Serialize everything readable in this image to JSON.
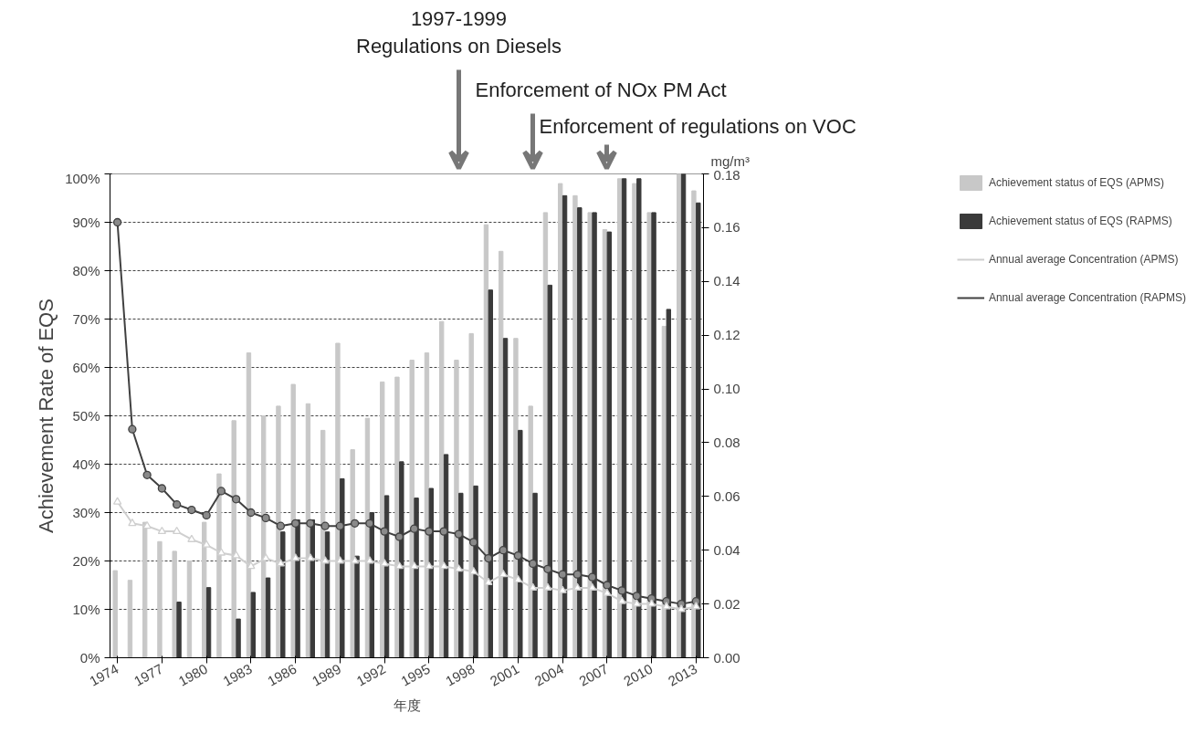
{
  "chart_data": {
    "type": "bar",
    "x": [
      1974,
      1975,
      1976,
      1977,
      1978,
      1979,
      1980,
      1981,
      1982,
      1983,
      1984,
      1985,
      1986,
      1987,
      1988,
      1989,
      1990,
      1991,
      1992,
      1993,
      1994,
      1995,
      1996,
      1997,
      1998,
      1999,
      2000,
      2001,
      2002,
      2003,
      2004,
      2005,
      2006,
      2007,
      2008,
      2009,
      2010,
      2011,
      2012,
      2013
    ],
    "xlim": [
      1973.5,
      2013.5
    ],
    "xticks": [
      1974,
      1977,
      1980,
      1983,
      1986,
      1989,
      1992,
      1995,
      1998,
      2001,
      2004,
      2007,
      2010,
      2013
    ],
    "xlabel": "年度",
    "ylabel": "Achievement Rate of EQS",
    "y2label": "mg/m³",
    "ylim": [
      0,
      100
    ],
    "yticks": [
      {
        "value": 0,
        "label": "0%"
      },
      {
        "value": 10,
        "label": "10%"
      },
      {
        "value": 20,
        "label": "20%"
      },
      {
        "value": 30,
        "label": "30%"
      },
      {
        "value": 40,
        "label": "40%"
      },
      {
        "value": 50,
        "label": "50%"
      },
      {
        "value": 60,
        "label": "60%"
      },
      {
        "value": 70,
        "label": "70%"
      },
      {
        "value": 80,
        "label": "80%"
      },
      {
        "value": 90,
        "label": "90%"
      },
      {
        "value": 100,
        "label": "100%"
      }
    ],
    "y2lim": [
      0,
      0.18
    ],
    "y2ticks": [
      {
        "value": 0,
        "label": "0.00"
      },
      {
        "value": 0.02,
        "label": "0.02"
      },
      {
        "value": 0.04,
        "label": "0.04"
      },
      {
        "value": 0.06,
        "label": "0.06"
      },
      {
        "value": 0.08,
        "label": "0.08"
      },
      {
        "value": 0.1,
        "label": "0.10"
      },
      {
        "value": 0.12,
        "label": "0.12"
      },
      {
        "value": 0.14,
        "label": "0.14"
      },
      {
        "value": 0.16,
        "label": "0.16"
      },
      {
        "value": 0.18,
        "label": "0.18"
      }
    ],
    "grid": "y",
    "legend": "right",
    "series": [
      {
        "name": "Achievement status of EQS (APMS)",
        "color": "#c8c8c8",
        "values": [
          18,
          16,
          28,
          24,
          22,
          20,
          28,
          38,
          49,
          63,
          50,
          52,
          56.5,
          52.5,
          47,
          65,
          43,
          49.5,
          57,
          58,
          61.5,
          63,
          69.5,
          61.5,
          67,
          89.5,
          84,
          66,
          52,
          92,
          98,
          95.5,
          92,
          88.5,
          99,
          98,
          92,
          68.5,
          100,
          96.5
        ]
      },
      {
        "name": "Achievement status of EQS (RAPMS)",
        "color": "#3a3a3a",
        "values": [
          null,
          null,
          null,
          null,
          11.5,
          null,
          14.5,
          null,
          8,
          13.5,
          16.5,
          26,
          28.5,
          28.5,
          26,
          37,
          21,
          30,
          33.5,
          40.5,
          33,
          35,
          42,
          34,
          35.5,
          76,
          66,
          47,
          34,
          77,
          95.5,
          93,
          92,
          88,
          99,
          99,
          92,
          72,
          100,
          94
        ]
      },
      {
        "name": "Annual average Concentration (APMS)",
        "type": "line",
        "axis": "y2",
        "marker": "triangle",
        "color": "#cfcfcf",
        "values": [
          0.058,
          0.05,
          0.049,
          0.047,
          0.047,
          0.044,
          0.042,
          0.039,
          0.038,
          0.034,
          0.037,
          0.035,
          0.037,
          0.037,
          0.036,
          0.036,
          0.036,
          0.036,
          0.035,
          0.034,
          0.034,
          0.034,
          0.034,
          0.033,
          0.032,
          0.028,
          0.031,
          0.029,
          0.026,
          0.026,
          0.025,
          0.026,
          0.026,
          0.024,
          0.021,
          0.02,
          0.02,
          0.019,
          0.018,
          0.019
        ]
      },
      {
        "name": "Annual average Concentration (RAPMS)",
        "type": "line",
        "axis": "y2",
        "marker": "circle",
        "color": "#404040",
        "values": [
          0.162,
          0.085,
          0.068,
          0.063,
          0.057,
          0.055,
          0.053,
          0.062,
          0.059,
          0.054,
          0.052,
          0.049,
          0.05,
          0.05,
          0.049,
          0.049,
          0.05,
          0.05,
          0.047,
          0.045,
          0.048,
          0.047,
          0.047,
          0.046,
          0.043,
          0.037,
          0.04,
          0.038,
          0.035,
          0.033,
          0.031,
          0.031,
          0.03,
          0.027,
          0.025,
          0.023,
          0.022,
          0.021,
          0.02,
          0.021
        ]
      }
    ],
    "annotations": [
      "1997-1999\nRegulations on Diesels",
      "Enforcement of NOx PM Act",
      "Enforcement of regulations on VOC"
    ]
  }
}
